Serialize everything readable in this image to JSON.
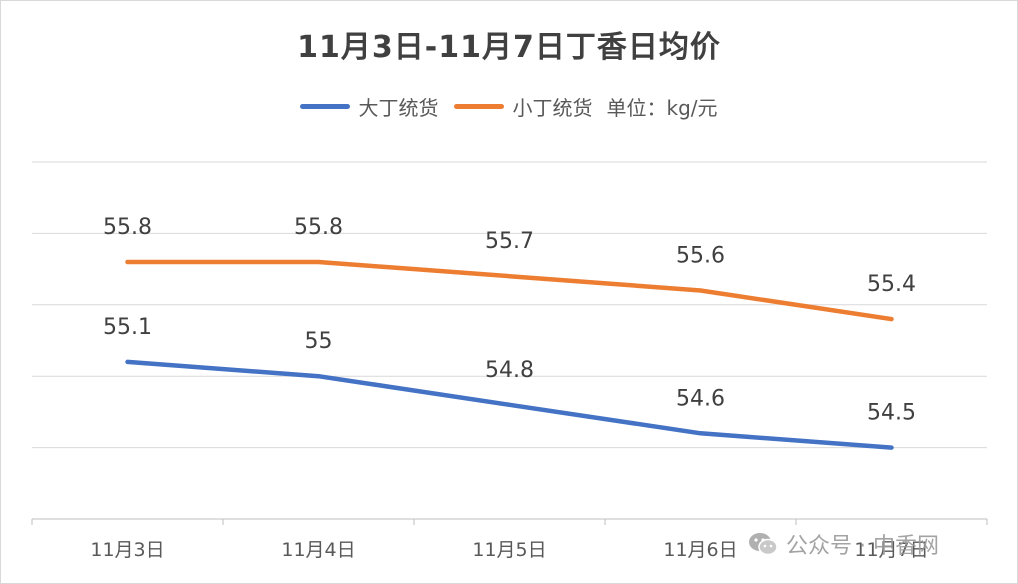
{
  "chart_data": {
    "type": "line",
    "title": "11月3日-11月7日丁香日均价",
    "unit_label": "单位：kg/元",
    "categories": [
      "11月3日",
      "11月4日",
      "11月5日",
      "11月6日",
      "11月7日"
    ],
    "series": [
      {
        "name": "大丁统货",
        "color": "#4472C4",
        "values": [
          55.1,
          55,
          54.8,
          54.6,
          54.5
        ]
      },
      {
        "name": "小丁统货",
        "color": "#ED7D31",
        "values": [
          55.8,
          55.8,
          55.7,
          55.6,
          55.4
        ]
      }
    ],
    "ylim": [
      54,
      56.5
    ],
    "y_step": 0.5,
    "grid": true,
    "y_tick_labels_shown": false,
    "legend_position": "top"
  },
  "watermark": {
    "text": "公众号 · 中香网",
    "icon": "wechat-icon"
  }
}
